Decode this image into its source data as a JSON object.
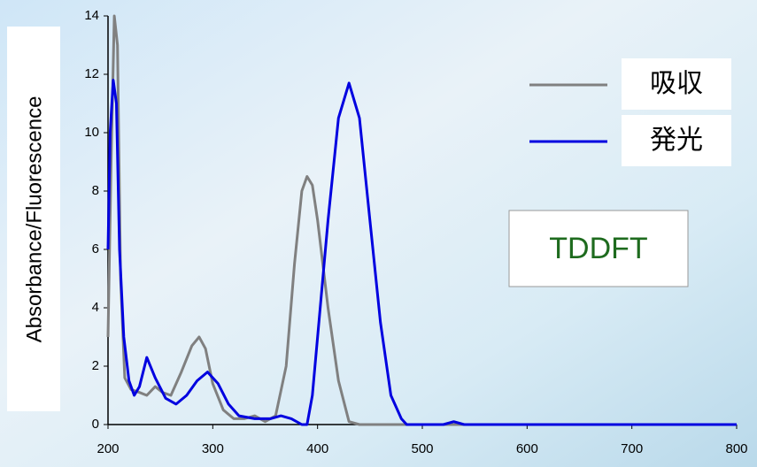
{
  "chart_data": {
    "type": "line",
    "y_label": "Absorbance/Fluorescence",
    "annotation": "TDDFT",
    "xlim": [
      200,
      800
    ],
    "xticks": [
      200,
      300,
      400,
      500,
      600,
      700,
      800
    ],
    "ylim": [
      0,
      14
    ],
    "yticks": [
      0,
      2,
      4,
      6,
      8,
      10,
      12,
      14
    ],
    "legend": "upper right",
    "series": [
      {
        "name": "吸収",
        "color": "#808080",
        "x": [
          200,
          203,
          206,
          209,
          212,
          216,
          222,
          230,
          237,
          245,
          252,
          260,
          270,
          280,
          287,
          293,
          300,
          310,
          320,
          330,
          340,
          350,
          360,
          370,
          378,
          385,
          390,
          395,
          400,
          410,
          420,
          430,
          440,
          500,
          600,
          700,
          800
        ],
        "values": [
          3,
          9,
          14,
          13,
          5,
          1.6,
          1.2,
          1.1,
          1,
          1.3,
          1.1,
          1,
          1.8,
          2.7,
          3,
          2.6,
          1.4,
          0.5,
          0.2,
          0.2,
          0.3,
          0.1,
          0.3,
          2,
          5.5,
          8,
          8.5,
          8.2,
          7,
          4,
          1.5,
          0.1,
          0,
          0,
          0,
          0,
          0
        ]
      },
      {
        "name": "発光",
        "color": "#0000e0",
        "x": [
          200,
          202,
          205,
          208,
          211,
          215,
          220,
          225,
          230,
          237,
          245,
          255,
          265,
          275,
          285,
          295,
          305,
          315,
          325,
          340,
          355,
          365,
          375,
          385,
          390,
          395,
          400,
          410,
          420,
          430,
          440,
          450,
          460,
          470,
          480,
          485,
          520,
          530,
          540,
          800
        ],
        "values": [
          6,
          10,
          11.8,
          11,
          6,
          3,
          1.5,
          1,
          1.3,
          2.3,
          1.6,
          0.9,
          0.7,
          1,
          1.5,
          1.8,
          1.4,
          0.7,
          0.3,
          0.2,
          0.2,
          0.3,
          0.2,
          0,
          0,
          1,
          3,
          7,
          10.5,
          11.7,
          10.5,
          7,
          3.5,
          1,
          0.2,
          0,
          0,
          0.1,
          0,
          0
        ]
      }
    ]
  }
}
